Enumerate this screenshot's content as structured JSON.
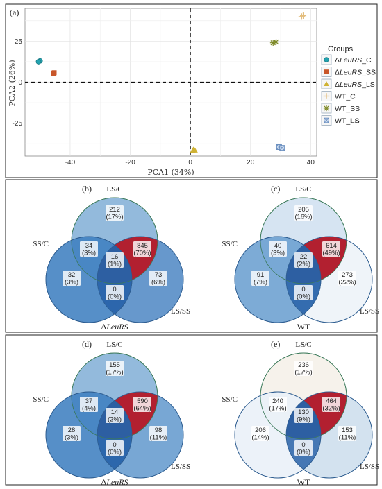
{
  "pca": {
    "tag": "(a)",
    "xlabel": "PCA1 (34%)",
    "ylabel": "PCA2 (26%)",
    "xlim": [
      -55,
      42
    ],
    "ylim": [
      -45,
      45
    ],
    "xticks": [
      -40,
      -20,
      0,
      20,
      40
    ],
    "yticks": [
      25,
      0,
      -25
    ],
    "legend_title": "Groups",
    "legend_placement": "right",
    "groups": [
      {
        "label_prefix": "Δ",
        "label_italic": "LeuRS",
        "label_suffix": "_C",
        "marker": "circle",
        "color": "#22a3b0"
      },
      {
        "label_prefix": "Δ",
        "label_italic": "LeuRS",
        "label_suffix": "_SS",
        "marker": "square",
        "color": "#c8562a"
      },
      {
        "label_prefix": "Δ",
        "label_italic": "LeuRS",
        "label_suffix": "_LS",
        "marker": "triangle",
        "color": "#cfb234"
      },
      {
        "label_prefix": "WT_C",
        "label_italic": "",
        "label_suffix": "",
        "marker": "plus",
        "color": "#e3bd7c"
      },
      {
        "label_prefix": "WT_SS",
        "label_italic": "",
        "label_suffix": "",
        "marker": "asterisk",
        "color": "#7e8a28"
      },
      {
        "label_prefix": "WT_",
        "label_italic": "",
        "label_suffix": "LS",
        "marker": "boxx",
        "color": "#6b8fbf"
      }
    ]
  },
  "chart_data": {
    "type": "scatter",
    "xlabel": "PCA1 (34%)",
    "ylabel": "PCA2 (26%)",
    "xlim": [
      -55,
      42
    ],
    "ylim": [
      -45,
      45
    ],
    "grid": true,
    "series": [
      {
        "name": "ΔLeuRS_C",
        "points": [
          [
            -50,
            13
          ],
          [
            -50.5,
            12.5
          ]
        ]
      },
      {
        "name": "ΔLeuRS_SS",
        "points": [
          [
            -45.5,
            5.5
          ],
          [
            -45.3,
            5.8
          ]
        ]
      },
      {
        "name": "ΔLeuRS_LS",
        "points": [
          [
            1,
            -41
          ],
          [
            1.5,
            -41.5
          ],
          [
            0.8,
            -41.8
          ]
        ]
      },
      {
        "name": "WT_C",
        "points": [
          [
            37,
            40
          ],
          [
            37.5,
            40.5
          ]
        ]
      },
      {
        "name": "WT_SS",
        "points": [
          [
            27.5,
            24
          ],
          [
            28.5,
            24.5
          ]
        ]
      },
      {
        "name": "WT_LS",
        "points": [
          [
            29.5,
            -39.5
          ],
          [
            30.5,
            -40
          ]
        ]
      }
    ]
  },
  "venns": [
    {
      "tag": "(b)",
      "title_prefix": "Δ",
      "title_italic": "LeuRS",
      "labels": {
        "top": "LS/C",
        "left": "SS/C",
        "right": "LS/SS"
      },
      "regions": {
        "top": [
          "212",
          "(17%)"
        ],
        "ab": [
          "34",
          "(3%)"
        ],
        "abc": [
          "16",
          "(1%)"
        ],
        "ac": [
          "845",
          "(70%)"
        ],
        "left": [
          "32",
          "(3%)"
        ],
        "bc": [
          "0",
          "(0%)"
        ],
        "right": [
          "73",
          "(6%)"
        ]
      },
      "colors": {
        "top": "#8db6da",
        "left": "#3f7fc0",
        "right": "#5a8fc8",
        "ac": "#b22030"
      }
    },
    {
      "tag": "(c)",
      "title_prefix": "WT",
      "title_italic": "",
      "labels": {
        "top": "LS/C",
        "left": "SS/C",
        "right": "LS/SS"
      },
      "regions": {
        "top": [
          "205",
          "(16%)"
        ],
        "ab": [
          "40",
          "(3%)"
        ],
        "abc": [
          "22",
          "(2%)"
        ],
        "ac": [
          "614",
          "(49%)"
        ],
        "left": [
          "91",
          "(7%)"
        ],
        "bc": [
          "0",
          "(0%)"
        ],
        "right": [
          "273",
          "(22%)"
        ]
      },
      "colors": {
        "top": "#d4e3f1",
        "left": "#6b9fd0",
        "right": "#eef3f9",
        "ac": "#b22030"
      }
    },
    {
      "tag": "(d)",
      "title_prefix": "Δ",
      "title_italic": "LeuRS",
      "labels": {
        "top": "LS/C",
        "left": "SS/C",
        "right": "LS/SS"
      },
      "regions": {
        "top": [
          "155",
          "(17%)"
        ],
        "ab": [
          "37",
          "(4%)"
        ],
        "abc": [
          "14",
          "(2%)"
        ],
        "ac": [
          "590",
          "(64%)"
        ],
        "left": [
          "28",
          "(3%)"
        ],
        "bc": [
          "0",
          "(0%)"
        ],
        "right": [
          "98",
          "(11%)"
        ]
      },
      "colors": {
        "top": "#8db6da",
        "left": "#3f7fc0",
        "right": "#6d9fd0",
        "ac": "#b22030"
      }
    },
    {
      "tag": "(e)",
      "title_prefix": "WT",
      "title_italic": "",
      "labels": {
        "top": "LS/C",
        "left": "SS/C",
        "right": "LS/SS"
      },
      "regions": {
        "top": [
          "236",
          "(17%)"
        ],
        "ab": [
          "240",
          "(17%)"
        ],
        "abc": [
          "130",
          "(9%)"
        ],
        "ac": [
          "464",
          "(32%)"
        ],
        "left": [
          "206",
          "(14%)"
        ],
        "bc": [
          "0",
          "(0%)"
        ],
        "right": [
          "153",
          "(11%)"
        ]
      },
      "colors": {
        "top": "#f5f1ea",
        "left": "#e9f0f8",
        "right": "#cfdfee",
        "ac": "#b22030"
      }
    }
  ]
}
